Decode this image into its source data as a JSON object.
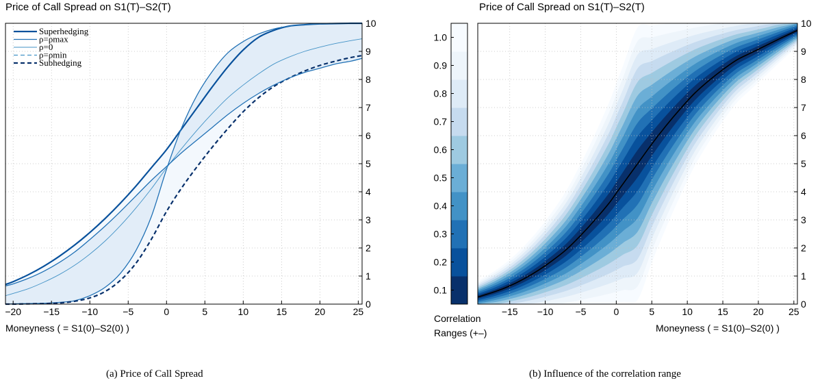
{
  "chart_data": [
    {
      "type": "line",
      "title": "Price of Call Spread on S1(T)–S2(T)",
      "xlabel": "Moneyness ( = S1(0)–S2(0) )",
      "ylabel": "",
      "xlim": [
        -21,
        25.5
      ],
      "ylim": [
        0,
        10
      ],
      "x_ticks": [
        "−20",
        "−15",
        "−10",
        "−5",
        "0",
        "5",
        "10",
        "15",
        "20",
        "25"
      ],
      "x_tick_values": [
        -20,
        -15,
        -10,
        -5,
        0,
        5,
        10,
        15,
        20,
        25
      ],
      "y_ticks": [
        "0",
        "1",
        "2",
        "3",
        "4",
        "5",
        "6",
        "7",
        "8",
        "9",
        "10"
      ],
      "y_tick_values": [
        0,
        1,
        2,
        3,
        4,
        5,
        6,
        7,
        8,
        9,
        10
      ],
      "y_axis_side": "right",
      "grid": true,
      "legend_position": "top-left",
      "x": [
        -21,
        -20,
        -18,
        -16,
        -14,
        -12,
        -10,
        -8,
        -6,
        -4,
        -2,
        0,
        2,
        4,
        6,
        8,
        10,
        12,
        14,
        16,
        18,
        20,
        22,
        24,
        25.5
      ],
      "series": [
        {
          "name": "Superhedging",
          "style": "solid-thick",
          "color": "#08519c",
          "values": [
            0.7,
            0.8,
            1.05,
            1.35,
            1.7,
            2.1,
            2.55,
            3.05,
            3.6,
            4.2,
            4.85,
            5.5,
            6.25,
            7.0,
            7.75,
            8.45,
            9.05,
            9.5,
            9.75,
            9.9,
            9.95,
            9.98,
            9.99,
            10.0,
            10.0
          ]
        },
        {
          "name": "ρ=ρmax",
          "style": "solid",
          "color": "#2171b5",
          "values": [
            0.0,
            0.01,
            0.02,
            0.03,
            0.06,
            0.12,
            0.3,
            0.6,
            1.1,
            1.9,
            3.1,
            4.8,
            6.3,
            7.45,
            8.3,
            8.95,
            9.35,
            9.62,
            9.8,
            9.9,
            9.95,
            9.98,
            9.99,
            10.0,
            10.0
          ]
        },
        {
          "name": "ρ=0",
          "style": "solid-thin",
          "color": "#4292c6",
          "values": [
            0.3,
            0.38,
            0.55,
            0.78,
            1.05,
            1.38,
            1.78,
            2.25,
            2.8,
            3.42,
            4.1,
            4.85,
            5.55,
            6.2,
            6.8,
            7.35,
            7.8,
            8.2,
            8.55,
            8.8,
            9.0,
            9.15,
            9.28,
            9.38,
            9.45
          ]
        },
        {
          "name": "ρ=ρmin",
          "style": "dashed",
          "color": "#4292c6",
          "values": [
            0.0,
            0.0,
            0.01,
            0.02,
            0.04,
            0.1,
            0.22,
            0.45,
            0.85,
            1.45,
            2.3,
            3.3,
            4.15,
            4.9,
            5.6,
            6.25,
            6.85,
            7.35,
            7.75,
            8.05,
            8.3,
            8.5,
            8.65,
            8.78,
            8.85
          ]
        },
        {
          "name": "Subhedging",
          "style": "dashed-thick",
          "color": "#08306b",
          "values": [
            0.0,
            0.0,
            0.01,
            0.02,
            0.04,
            0.1,
            0.22,
            0.45,
            0.85,
            1.45,
            2.3,
            3.3,
            4.15,
            4.9,
            5.6,
            6.25,
            6.85,
            7.35,
            7.75,
            8.05,
            8.3,
            8.5,
            8.65,
            8.78,
            8.85
          ]
        },
        {
          "name": "",
          "style": "solid",
          "color": "#2171b5",
          "values": [
            0.65,
            0.72,
            0.92,
            1.17,
            1.48,
            1.85,
            2.3,
            2.78,
            3.3,
            3.85,
            4.4,
            4.9,
            5.4,
            5.85,
            6.3,
            6.75,
            7.15,
            7.5,
            7.8,
            8.05,
            8.25,
            8.4,
            8.55,
            8.65,
            8.75
          ]
        }
      ],
      "fill_color": "#deebf7",
      "fill_color_light": "#f3f8fd"
    },
    {
      "type": "area",
      "title": "Price of Call Spread on S1(T)–S2(T)",
      "xlabel": "Moneyness ( = S1(0)–S2(0) )",
      "ylabel": "",
      "xlim": [
        -19.5,
        25.5
      ],
      "ylim": [
        0,
        10
      ],
      "x_ticks": [
        "−15",
        "−10",
        "−5",
        "0",
        "5",
        "10",
        "15",
        "20",
        "25"
      ],
      "x_tick_values": [
        -15,
        -10,
        -5,
        0,
        5,
        10,
        15,
        20,
        25
      ],
      "y_ticks": [
        "0",
        "1",
        "2",
        "3",
        "4",
        "5",
        "6",
        "7",
        "8",
        "9",
        "10"
      ],
      "y_tick_values": [
        0,
        1,
        2,
        3,
        4,
        5,
        6,
        7,
        8,
        9,
        10
      ],
      "y_axis_side": "right",
      "grid": true,
      "center_line": {
        "x": [
          -19.5,
          -17,
          -15,
          -13,
          -11,
          -9,
          -7,
          -5,
          -3,
          -1,
          0,
          1,
          3,
          5,
          7,
          9,
          11,
          13,
          15,
          17,
          19,
          21,
          23,
          25.5
        ],
        "values": [
          0.25,
          0.45,
          0.65,
          0.9,
          1.2,
          1.55,
          1.95,
          2.45,
          3.0,
          3.6,
          3.95,
          4.3,
          5.0,
          5.7,
          6.35,
          6.95,
          7.5,
          7.95,
          8.35,
          8.7,
          8.95,
          9.2,
          9.45,
          9.75
        ],
        "color": "#000000"
      },
      "band_colors": [
        "#08306b",
        "#08519c",
        "#2171b5",
        "#4292c6",
        "#6baed6",
        "#9ecae1",
        "#c6dbef",
        "#deebf7",
        "#eef5fb",
        "#f7fbff"
      ],
      "colorbar": {
        "label_line1": "Correlation",
        "label_line2": "Ranges (+–)",
        "tick_labels": [
          "0.1",
          "0.2",
          "0.3",
          "0.4",
          "0.5",
          "0.6",
          "0.7",
          "0.8",
          "0.9",
          "1.0"
        ],
        "tick_values": [
          0.1,
          0.2,
          0.3,
          0.4,
          0.5,
          0.6,
          0.7,
          0.8,
          0.9,
          1.0
        ],
        "range": [
          0.05,
          1.05
        ]
      }
    }
  ],
  "captions": {
    "a": "(a) Price of Call Spread",
    "b": "(b) Influence of the correlation range"
  }
}
